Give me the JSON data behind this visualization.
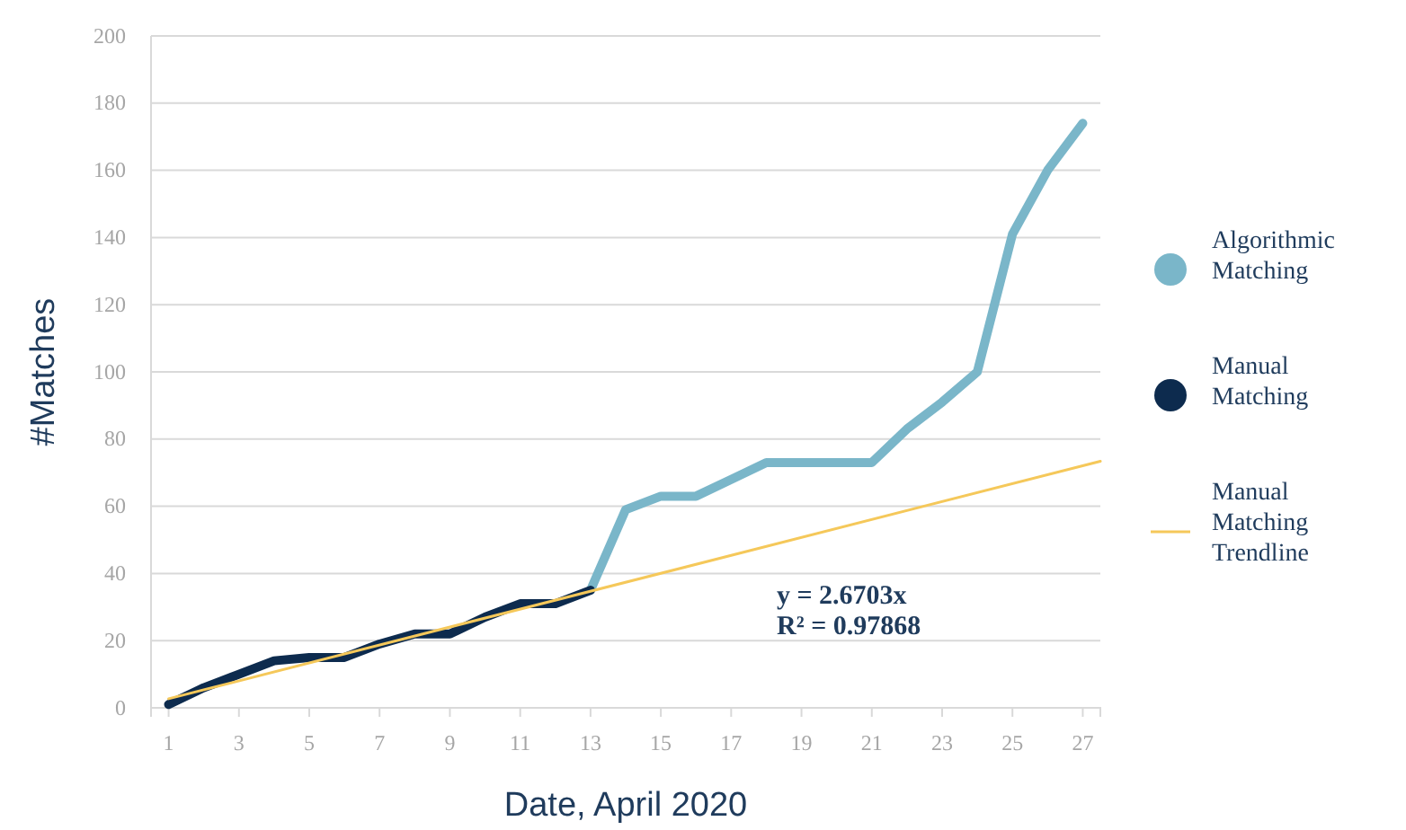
{
  "chart_data": {
    "type": "line",
    "xlabel": "Date, April 2020",
    "ylabel": "#Matches",
    "x": [
      1,
      2,
      3,
      4,
      5,
      6,
      7,
      8,
      9,
      10,
      11,
      12,
      13,
      14,
      15,
      16,
      17,
      18,
      19,
      20,
      21,
      22,
      23,
      24,
      25,
      26,
      27
    ],
    "xlim": [
      0.5,
      27.5
    ],
    "xticks": [
      1,
      3,
      5,
      7,
      9,
      11,
      13,
      15,
      17,
      19,
      21,
      23,
      25,
      27
    ],
    "ylim": [
      0,
      200
    ],
    "yticks": [
      0,
      20,
      40,
      60,
      80,
      100,
      120,
      140,
      160,
      180,
      200
    ],
    "grid": "y",
    "legend": "right",
    "marker": "none",
    "series": [
      {
        "name": "Algorithmic Matching",
        "color": "#7ab6c9",
        "values": [
          null,
          null,
          null,
          null,
          null,
          null,
          null,
          null,
          null,
          null,
          null,
          null,
          35,
          59,
          63,
          63,
          68,
          73,
          73,
          73,
          73,
          83,
          91,
          100,
          141,
          160,
          174
        ]
      },
      {
        "name": "Manual Matching",
        "color": "#0d2b4e",
        "values": [
          1,
          6,
          10,
          14,
          15,
          15,
          19,
          22,
          22,
          27,
          31,
          31,
          35,
          null,
          null,
          null,
          null,
          null,
          null,
          null,
          null,
          null,
          null,
          null,
          null,
          null,
          null
        ]
      },
      {
        "name": "Manual Matching Trendline",
        "type": "line",
        "color": "#f5c85a",
        "x": [
          1,
          27.5
        ],
        "values": [
          2.7,
          73.4
        ]
      }
    ],
    "annotations": [
      "y = 2.6703x",
      "R² = 0.97868"
    ]
  }
}
